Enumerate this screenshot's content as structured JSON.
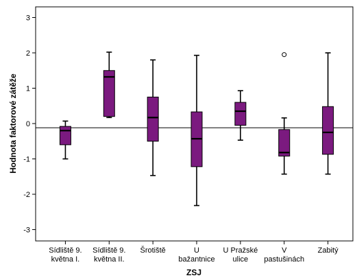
{
  "chart_data": {
    "type": "boxplot",
    "xlabel": "ZSJ",
    "ylabel": "Hodnota faktorové zátěže",
    "ylim": [
      -3.5,
      3.3
    ],
    "yticks": [
      -3,
      -2,
      -1,
      0,
      1,
      2,
      3
    ],
    "reference_line": -0.12,
    "grid": false,
    "legend": "none",
    "box_color": "#7b1a7f",
    "categories": [
      {
        "label_lines": [
          "Sídliště 9.",
          "května I."
        ],
        "whisker_low": -1.0,
        "q1": -0.6,
        "median": -0.2,
        "q3": -0.08,
        "whisker_high": 0.07,
        "outliers": []
      },
      {
        "label_lines": [
          "Sídliště 9.",
          "května II."
        ],
        "whisker_low": 0.17,
        "q1": 0.2,
        "median": 1.32,
        "q3": 1.5,
        "whisker_high": 2.02,
        "outliers": []
      },
      {
        "label_lines": [
          "Šrotiště"
        ],
        "whisker_low": -1.47,
        "q1": -0.5,
        "median": 0.17,
        "q3": 0.75,
        "whisker_high": 1.8,
        "outliers": []
      },
      {
        "label_lines": [
          "U",
          "bažantnice"
        ],
        "whisker_low": -2.32,
        "q1": -1.22,
        "median": -0.43,
        "q3": 0.33,
        "whisker_high": 1.93,
        "outliers": []
      },
      {
        "label_lines": [
          "U Pražské",
          "ulice"
        ],
        "whisker_low": -0.47,
        "q1": -0.05,
        "median": 0.35,
        "q3": 0.6,
        "whisker_high": 0.93,
        "outliers": []
      },
      {
        "label_lines": [
          "V",
          "pastušinách"
        ],
        "whisker_low": -1.43,
        "q1": -0.92,
        "median": -0.82,
        "q3": -0.17,
        "whisker_high": 0.16,
        "outliers": [
          1.95
        ]
      },
      {
        "label_lines": [
          "Zabitý"
        ],
        "whisker_low": -1.43,
        "q1": -0.87,
        "median": -0.25,
        "q3": 0.48,
        "whisker_high": 2.0,
        "outliers": []
      }
    ]
  }
}
